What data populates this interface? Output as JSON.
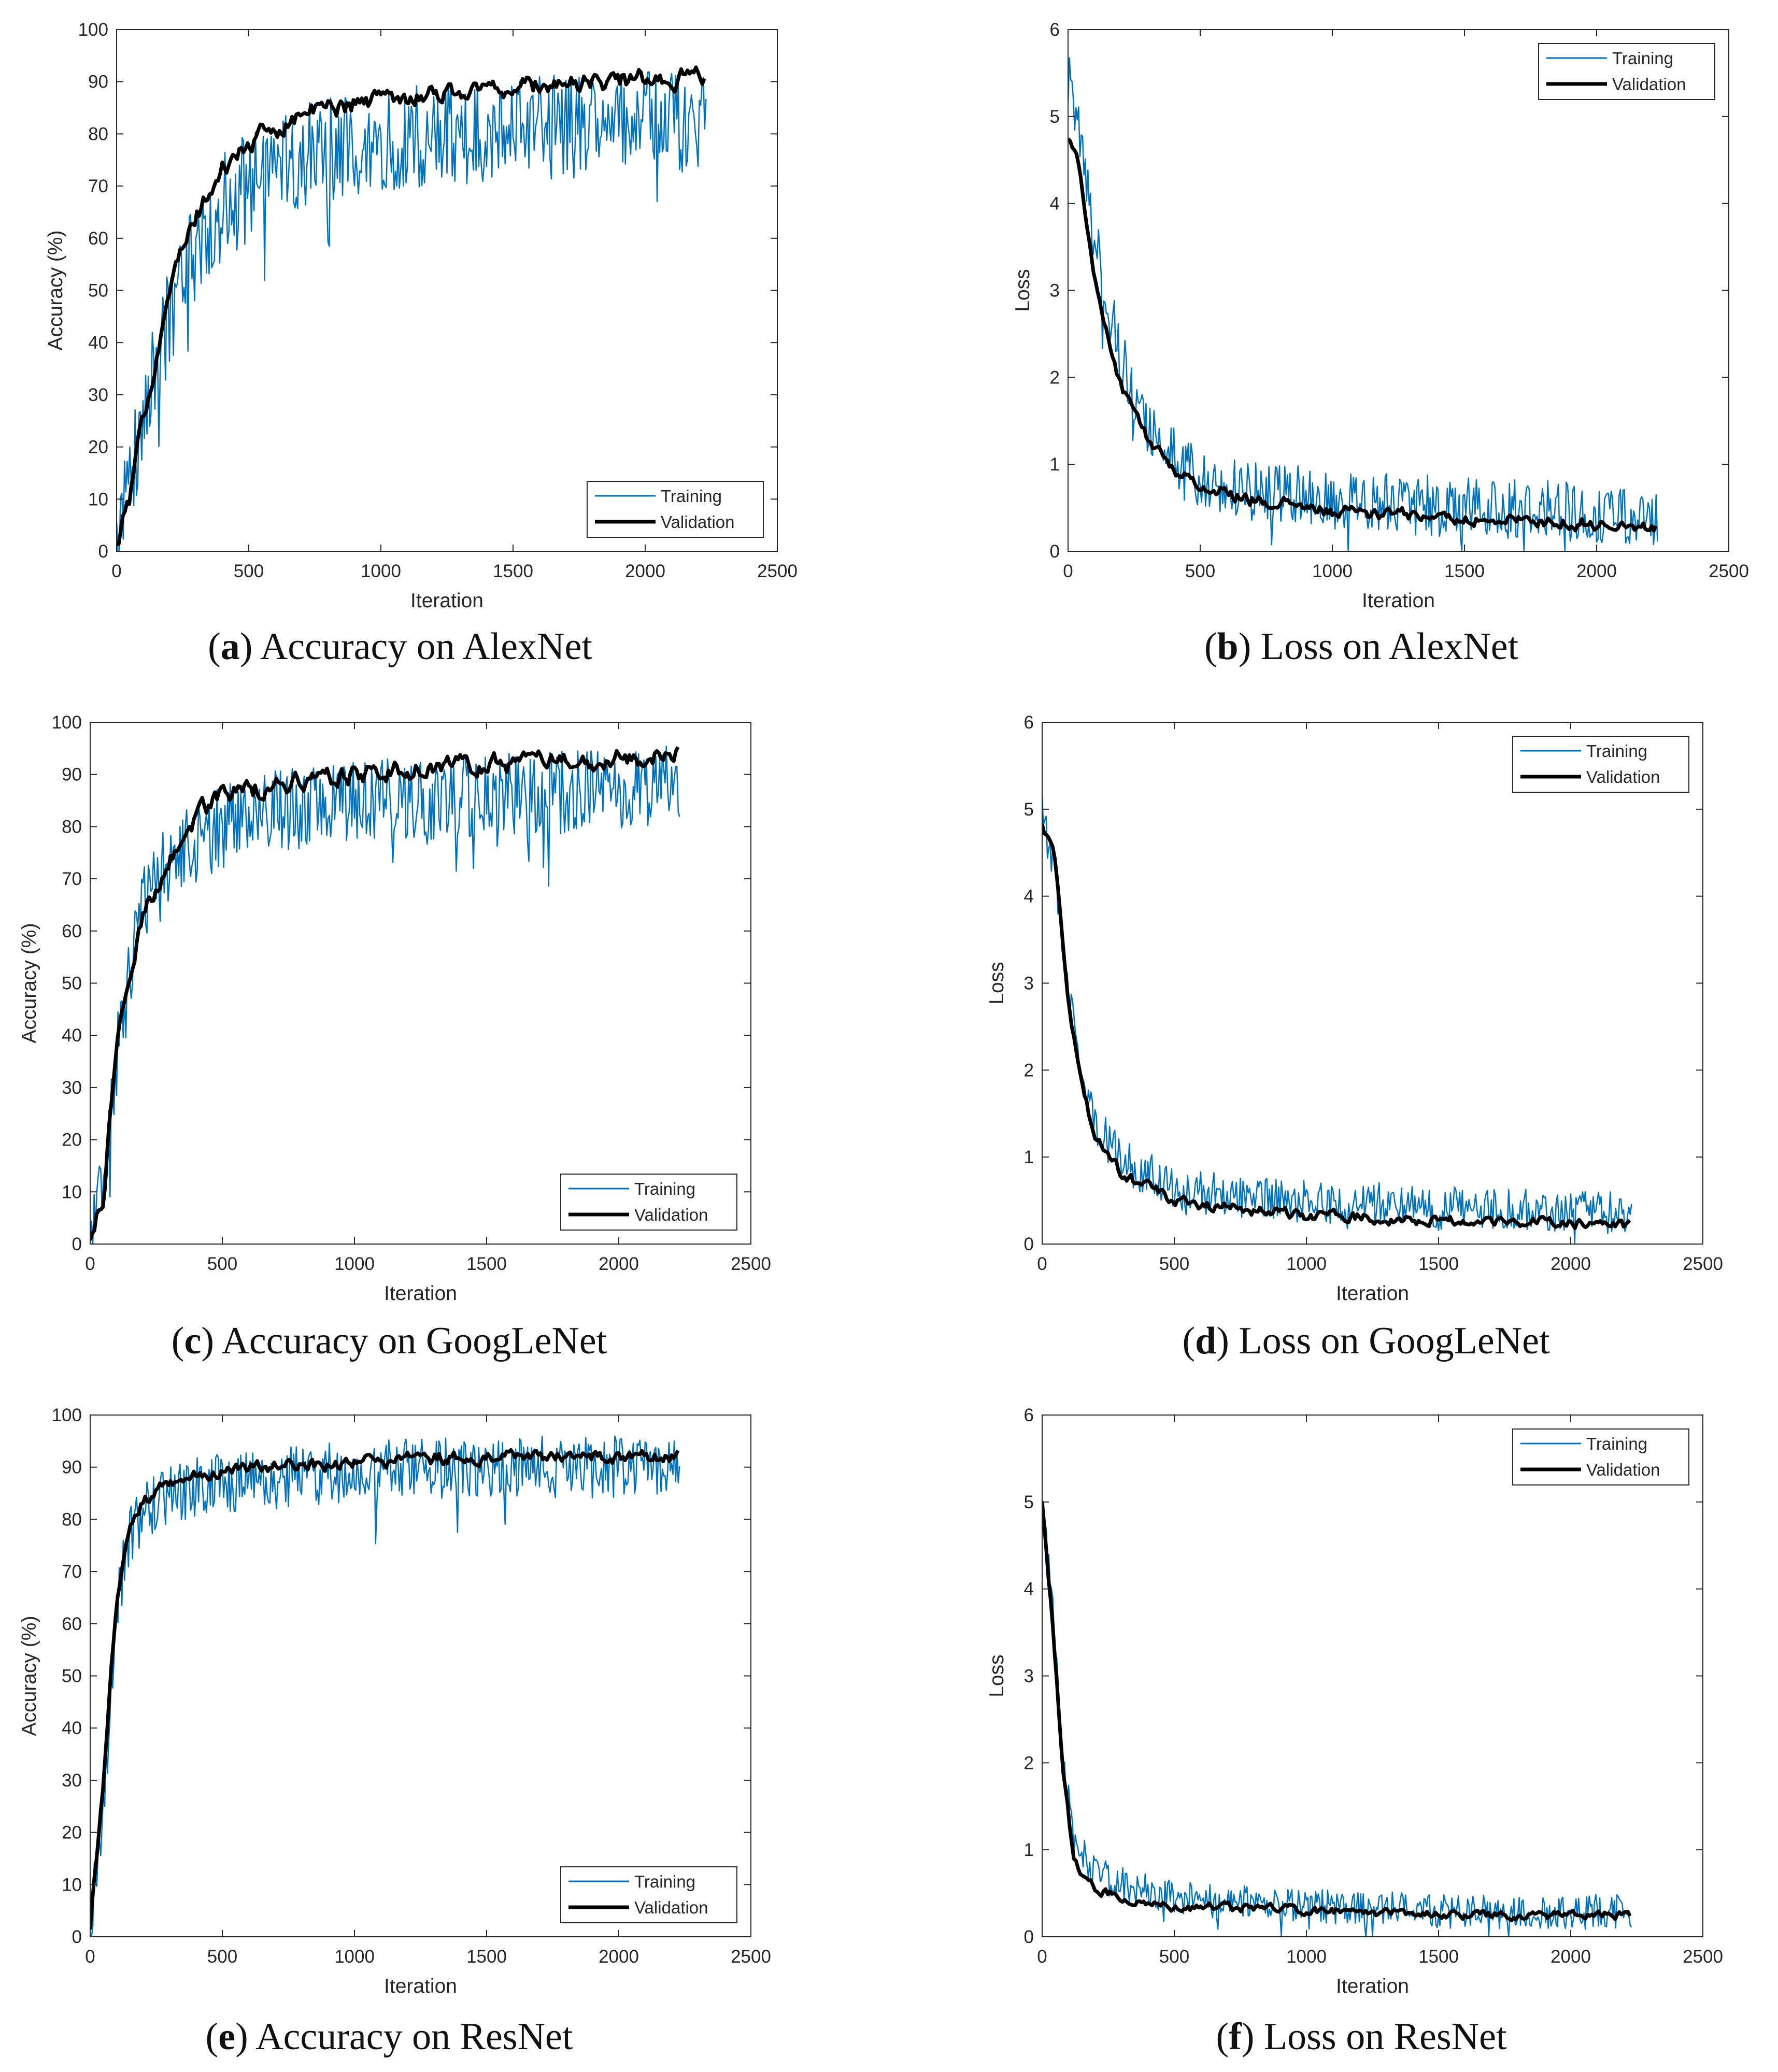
{
  "colors": {
    "training": "#0072BD",
    "validation": "#000000",
    "axis": "#262626"
  },
  "chart_data": [
    {
      "id": "a",
      "type": "line",
      "caption": {
        "letter": "a",
        "text": " Accuracy on AlexNet"
      },
      "xlabel": "Iteration",
      "ylabel": "Accuracy (%)",
      "xlim": [
        0,
        2500
      ],
      "ylim": [
        0,
        100
      ],
      "xticks": [
        0,
        500,
        1000,
        1500,
        2000,
        2500
      ],
      "yticks": [
        0,
        10,
        20,
        30,
        40,
        50,
        60,
        70,
        80,
        90,
        100
      ],
      "legend": {
        "position": "bottom-right",
        "entries": [
          "Training",
          "Validation"
        ]
      },
      "iterations": 2230,
      "series": [
        {
          "name": "Training",
          "trend": [
            [
              0,
              3
            ],
            [
              100,
              25
            ],
            [
              200,
              45
            ],
            [
              300,
              58
            ],
            [
              400,
              66
            ],
            [
              500,
              71
            ],
            [
              700,
              76
            ],
            [
              1000,
              79
            ],
            [
              1500,
              81
            ],
            [
              2000,
              82
            ],
            [
              2230,
              83
            ]
          ],
          "noise": 10.0,
          "clip": [
            0,
            100
          ]
        },
        {
          "name": "Validation",
          "trend": [
            [
              0,
              1
            ],
            [
              50,
              10
            ],
            [
              100,
              25
            ],
            [
              150,
              38
            ],
            [
              200,
              51
            ],
            [
              300,
              64
            ],
            [
              400,
              73
            ],
            [
              500,
              78
            ],
            [
              700,
              84
            ],
            [
              1000,
              87
            ],
            [
              1500,
              89
            ],
            [
              2000,
              90.5
            ],
            [
              2230,
              91
            ]
          ],
          "noise": 1.5,
          "clip": [
            0,
            100
          ]
        }
      ]
    },
    {
      "id": "b",
      "type": "line",
      "caption": {
        "letter": "b",
        "text": " Loss on AlexNet"
      },
      "xlabel": "Iteration",
      "ylabel": "Loss",
      "xlim": [
        0,
        2500
      ],
      "ylim": [
        0,
        6
      ],
      "xticks": [
        0,
        500,
        1000,
        1500,
        2000,
        2500
      ],
      "yticks": [
        0,
        1,
        2,
        3,
        4,
        5,
        6
      ],
      "legend": {
        "position": "top-right",
        "entries": [
          "Training",
          "Validation"
        ]
      },
      "iterations": 2230,
      "series": [
        {
          "name": "Training",
          "trend": [
            [
              0,
              5.5
            ],
            [
              50,
              4.6
            ],
            [
              100,
              3.6
            ],
            [
              200,
              2.2
            ],
            [
              300,
              1.5
            ],
            [
              400,
              1.1
            ],
            [
              500,
              0.85
            ],
            [
              700,
              0.7
            ],
            [
              1000,
              0.6
            ],
            [
              1500,
              0.5
            ],
            [
              2000,
              0.45
            ],
            [
              2230,
              0.4
            ]
          ],
          "noise": 0.35,
          "clip": [
            0,
            6
          ]
        },
        {
          "name": "Validation",
          "trend": [
            [
              0,
              4.8
            ],
            [
              50,
              4.3
            ],
            [
              100,
              3.1
            ],
            [
              200,
              1.9
            ],
            [
              300,
              1.3
            ],
            [
              400,
              0.95
            ],
            [
              500,
              0.75
            ],
            [
              700,
              0.6
            ],
            [
              1000,
              0.45
            ],
            [
              1500,
              0.38
            ],
            [
              2000,
              0.32
            ],
            [
              2230,
              0.3
            ]
          ],
          "noise": 0.06,
          "clip": [
            0,
            6
          ]
        }
      ]
    },
    {
      "id": "c",
      "type": "line",
      "caption": {
        "letter": "c",
        "text": " Accuracy on GoogLeNet"
      },
      "xlabel": "Iteration",
      "ylabel": "Accuracy (%)",
      "xlim": [
        0,
        2500
      ],
      "ylim": [
        0,
        100
      ],
      "xticks": [
        0,
        500,
        1000,
        1500,
        2000,
        2500
      ],
      "yticks": [
        0,
        10,
        20,
        30,
        40,
        50,
        60,
        70,
        80,
        90,
        100
      ],
      "legend": {
        "position": "bottom-right",
        "entries": [
          "Training",
          "Validation"
        ]
      },
      "iterations": 2230,
      "series": [
        {
          "name": "Training",
          "trend": [
            [
              0,
              2
            ],
            [
              50,
              12
            ],
            [
              100,
              35
            ],
            [
              150,
              52
            ],
            [
              200,
              64
            ],
            [
              300,
              74
            ],
            [
              500,
              80
            ],
            [
              700,
              83
            ],
            [
              1000,
              85
            ],
            [
              1500,
              86
            ],
            [
              2000,
              87
            ],
            [
              2230,
              88
            ]
          ],
          "noise": 8.0,
          "clip": [
            0,
            100
          ]
        },
        {
          "name": "Validation",
          "trend": [
            [
              0,
              1
            ],
            [
              50,
              9
            ],
            [
              100,
              38
            ],
            [
              150,
              52
            ],
            [
              200,
              63
            ],
            [
              300,
              74
            ],
            [
              400,
              82
            ],
            [
              500,
              86
            ],
            [
              700,
              88
            ],
            [
              1000,
              90
            ],
            [
              1500,
              92
            ],
            [
              2000,
              93
            ],
            [
              2230,
              94
            ]
          ],
          "noise": 1.5,
          "clip": [
            0,
            100
          ]
        }
      ]
    },
    {
      "id": "d",
      "type": "line",
      "caption": {
        "letter": "d",
        "text": " Loss on GoogLeNet"
      },
      "xlabel": "Iteration",
      "ylabel": "Loss",
      "xlim": [
        0,
        2500
      ],
      "ylim": [
        0,
        6
      ],
      "xticks": [
        0,
        500,
        1000,
        1500,
        2000,
        2500
      ],
      "yticks": [
        0,
        1,
        2,
        3,
        4,
        5,
        6
      ],
      "legend": {
        "position": "top-right",
        "entries": [
          "Training",
          "Validation"
        ]
      },
      "iterations": 2230,
      "series": [
        {
          "name": "Training",
          "trend": [
            [
              0,
              5.0
            ],
            [
              50,
              4.2
            ],
            [
              100,
              2.9
            ],
            [
              150,
              2.0
            ],
            [
              200,
              1.4
            ],
            [
              300,
              0.95
            ],
            [
              500,
              0.65
            ],
            [
              700,
              0.55
            ],
            [
              1000,
              0.5
            ],
            [
              1500,
              0.42
            ],
            [
              2000,
              0.38
            ],
            [
              2230,
              0.35
            ]
          ],
          "noise": 0.25,
          "clip": [
            0,
            6
          ]
        },
        {
          "name": "Validation",
          "trend": [
            [
              0,
              4.8
            ],
            [
              50,
              4.4
            ],
            [
              100,
              2.8
            ],
            [
              150,
              1.8
            ],
            [
              200,
              1.2
            ],
            [
              300,
              0.8
            ],
            [
              500,
              0.5
            ],
            [
              700,
              0.42
            ],
            [
              1000,
              0.33
            ],
            [
              1500,
              0.28
            ],
            [
              2000,
              0.24
            ],
            [
              2230,
              0.2
            ]
          ],
          "noise": 0.05,
          "clip": [
            0,
            6
          ]
        }
      ]
    },
    {
      "id": "e",
      "type": "line",
      "caption": {
        "letter": "e",
        "text": " Accuracy on ResNet"
      },
      "xlabel": "Iteration",
      "ylabel": "Accuracy (%)",
      "xlim": [
        0,
        2500
      ],
      "ylim": [
        0,
        100
      ],
      "xticks": [
        0,
        500,
        1000,
        1500,
        2000,
        2500
      ],
      "yticks": [
        0,
        10,
        20,
        30,
        40,
        50,
        60,
        70,
        80,
        90,
        100
      ],
      "legend": {
        "position": "bottom-right",
        "entries": [
          "Training",
          "Validation"
        ]
      },
      "iterations": 2230,
      "series": [
        {
          "name": "Training",
          "trend": [
            [
              0,
              3
            ],
            [
              50,
              25
            ],
            [
              100,
              65
            ],
            [
              150,
              76
            ],
            [
              200,
              81
            ],
            [
              300,
              85
            ],
            [
              500,
              87
            ],
            [
              700,
              88
            ],
            [
              1000,
              89
            ],
            [
              1500,
              90
            ],
            [
              2000,
              90
            ],
            [
              2230,
              91
            ]
          ],
          "noise": 6.0,
          "clip": [
            0,
            100
          ]
        },
        {
          "name": "Validation",
          "trend": [
            [
              0,
              2
            ],
            [
              50,
              30
            ],
            [
              100,
              65
            ],
            [
              150,
              78
            ],
            [
              200,
              83
            ],
            [
              300,
              87
            ],
            [
              500,
              89
            ],
            [
              700,
              90
            ],
            [
              1000,
              91
            ],
            [
              1500,
              92
            ],
            [
              2000,
              92
            ],
            [
              2230,
              92
            ]
          ],
          "noise": 1.0,
          "clip": [
            0,
            100
          ]
        }
      ]
    },
    {
      "id": "f",
      "type": "line",
      "caption": {
        "letter": "f",
        "text": " Loss on ResNet"
      },
      "xlabel": "Iteration",
      "ylabel": "Loss",
      "xlim": [
        0,
        2500
      ],
      "ylim": [
        0,
        6
      ],
      "xticks": [
        0,
        500,
        1000,
        1500,
        2000,
        2500
      ],
      "yticks": [
        0,
        1,
        2,
        3,
        4,
        5,
        6
      ],
      "legend": {
        "position": "top-right",
        "entries": [
          "Training",
          "Validation"
        ]
      },
      "iterations": 2230,
      "series": [
        {
          "name": "Training",
          "trend": [
            [
              0,
              5.0
            ],
            [
              40,
              3.8
            ],
            [
              80,
              2.0
            ],
            [
              120,
              1.1
            ],
            [
              200,
              0.75
            ],
            [
              300,
              0.6
            ],
            [
              500,
              0.45
            ],
            [
              700,
              0.4
            ],
            [
              1000,
              0.35
            ],
            [
              1500,
              0.3
            ],
            [
              2000,
              0.28
            ],
            [
              2230,
              0.3
            ]
          ],
          "noise": 0.2,
          "clip": [
            0,
            6
          ]
        },
        {
          "name": "Validation",
          "trend": [
            [
              0,
              5.0
            ],
            [
              40,
              3.6
            ],
            [
              80,
              1.9
            ],
            [
              120,
              0.85
            ],
            [
              200,
              0.55
            ],
            [
              300,
              0.45
            ],
            [
              500,
              0.35
            ],
            [
              700,
              0.33
            ],
            [
              1000,
              0.3
            ],
            [
              1500,
              0.26
            ],
            [
              2000,
              0.25
            ],
            [
              2230,
              0.25
            ]
          ],
          "noise": 0.04,
          "clip": [
            0,
            6
          ]
        }
      ]
    }
  ]
}
